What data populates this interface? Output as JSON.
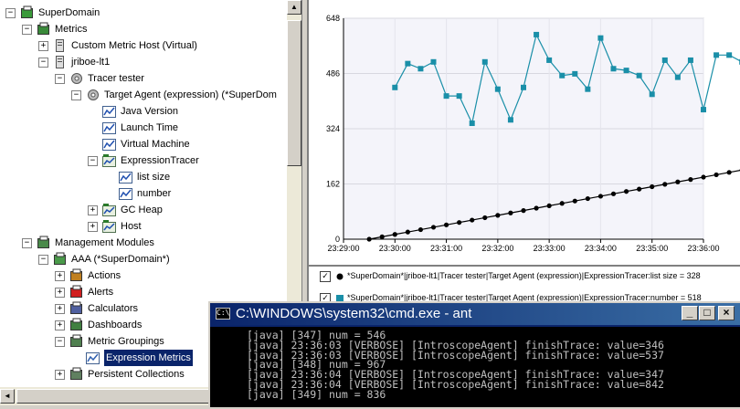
{
  "tree": {
    "nodes": [
      {
        "label": "SuperDomain",
        "depth": 0,
        "expander": "−",
        "icon": "domain-icon"
      },
      {
        "label": "Metrics",
        "depth": 1,
        "expander": "−",
        "icon": "metrics-icon"
      },
      {
        "label": "Custom Metric Host (Virtual)",
        "depth": 2,
        "expander": "+",
        "icon": "host-icon"
      },
      {
        "label": "jriboe-lt1",
        "depth": 2,
        "expander": "−",
        "icon": "host-icon"
      },
      {
        "label": "Tracer tester",
        "depth": 3,
        "expander": "−",
        "icon": "process-icon"
      },
      {
        "label": "Target Agent (expression) (*SuperDom",
        "depth": 4,
        "expander": "−",
        "icon": "agent-icon"
      },
      {
        "label": "Java Version",
        "depth": 5,
        "expander": "",
        "icon": "metric-icon"
      },
      {
        "label": "Launch Time",
        "depth": 5,
        "expander": "",
        "icon": "metric-icon"
      },
      {
        "label": "Virtual Machine",
        "depth": 5,
        "expander": "",
        "icon": "metric-icon"
      },
      {
        "label": "ExpressionTracer",
        "depth": 5,
        "expander": "−",
        "icon": "folder-metric-icon"
      },
      {
        "label": "list size",
        "depth": 6,
        "expander": "",
        "icon": "metric-icon"
      },
      {
        "label": "number",
        "depth": 6,
        "expander": "",
        "icon": "metric-icon"
      },
      {
        "label": "GC Heap",
        "depth": 5,
        "expander": "+",
        "icon": "folder-metric-icon"
      },
      {
        "label": "Host",
        "depth": 5,
        "expander": "+",
        "icon": "folder-metric-icon"
      },
      {
        "label": "Management Modules",
        "depth": 1,
        "expander": "−",
        "icon": "modules-icon"
      },
      {
        "label": "AAA (*SuperDomain*)",
        "depth": 2,
        "expander": "−",
        "icon": "module-icon"
      },
      {
        "label": "Actions",
        "depth": 3,
        "expander": "+",
        "icon": "actions-icon"
      },
      {
        "label": "Alerts",
        "depth": 3,
        "expander": "+",
        "icon": "alerts-icon"
      },
      {
        "label": "Calculators",
        "depth": 3,
        "expander": "+",
        "icon": "calculators-icon"
      },
      {
        "label": "Dashboards",
        "depth": 3,
        "expander": "+",
        "icon": "dashboards-icon"
      },
      {
        "label": "Metric Groupings",
        "depth": 3,
        "expander": "−",
        "icon": "groupings-icon"
      },
      {
        "label": "Expression Metrics",
        "depth": 4,
        "expander": "",
        "icon": "grouping-icon",
        "selected": true
      },
      {
        "label": "Persistent Collections",
        "depth": 3,
        "expander": "+",
        "icon": "collections-icon"
      }
    ]
  },
  "chart_data": {
    "type": "line",
    "y_ticks": [
      "648",
      "486",
      "324",
      "162",
      "0"
    ],
    "ylim": [
      0,
      648
    ],
    "x_ticks": [
      "23:29:00",
      "23:30:00",
      "23:31:00",
      "23:32:00",
      "23:33:00",
      "23:34:00",
      "23:35:00",
      "23:36:00"
    ],
    "series": [
      {
        "name": "*SuperDomain*|jriboe-lt1|Tracer tester|Target Agent (expression)|ExpressionTracer:list size = 328",
        "color": "#000000",
        "marker": "circle",
        "x": [
          23.5,
          23.75,
          24.0,
          24.25,
          24.5,
          24.75,
          25.0,
          25.25,
          25.5,
          25.75,
          26.0,
          26.25,
          26.5,
          26.75,
          27.0,
          27.25,
          27.5,
          27.75,
          28.0,
          28.25,
          28.5,
          28.75,
          29.0,
          29.25,
          29.5,
          29.75,
          30.0,
          30.25,
          30.5,
          30.75,
          31.0,
          31.25,
          31.5,
          31.75,
          32.0,
          32.25,
          32.5,
          32.75,
          33.0,
          33.25,
          33.5,
          33.75,
          34.0,
          34.25,
          34.5,
          34.75,
          35.0
        ],
        "values": [
          0,
          7,
          14,
          21,
          28,
          35,
          42,
          49,
          56,
          63,
          70,
          77,
          84,
          91,
          98,
          105,
          112,
          119,
          126,
          133,
          140,
          147,
          154,
          161,
          168,
          175,
          182,
          189,
          196,
          203,
          210,
          217,
          224,
          231,
          238,
          245,
          252,
          259,
          266,
          273,
          280,
          287,
          294,
          301,
          308,
          315,
          328
        ]
      },
      {
        "name": "*SuperDomain*|jriboe-lt1|Tracer tester|Target Agent (expression)|ExpressionTracer:number = 518",
        "color": "#1a8fa8",
        "marker": "square",
        "x": [
          24.0,
          24.25,
          24.5,
          24.75,
          25.0,
          25.25,
          25.5,
          25.75,
          26.0,
          26.25,
          26.5,
          26.75,
          27.0,
          27.25,
          27.5,
          27.75,
          28.0,
          28.25,
          28.5,
          28.75,
          29.0,
          29.25,
          29.5,
          29.75,
          30.0,
          30.25,
          30.5,
          30.75
        ],
        "values": [
          445,
          515,
          500,
          520,
          420,
          420,
          340,
          520,
          440,
          350,
          445,
          600,
          525,
          480,
          485,
          440,
          590,
          500,
          495,
          480,
          425,
          525,
          475,
          525,
          380,
          540,
          540,
          520
        ]
      }
    ]
  },
  "legend": {
    "rows": [
      {
        "checked": "✓",
        "text": "*SuperDomain*|jriboe-lt1|Tracer tester|Target Agent (expression)|ExpressionTracer:list size = 328"
      },
      {
        "checked": "✓",
        "text": "*SuperDomain*|jriboe-lt1|Tracer tester|Target Agent (expression)|ExpressionTracer:number = 518"
      }
    ]
  },
  "cmd": {
    "title": "C:\\WINDOWS\\system32\\cmd.exe - ant",
    "lines": [
      "[java] [347] num = 546",
      "[java] 23:36:03 [VERBOSE] [IntroscopeAgent] finishTrace: value=346",
      "[java] 23:36:03 [VERBOSE] [IntroscopeAgent] finishTrace: value=537",
      "[java] [348] num = 967",
      "[java] 23:36:04 [VERBOSE] [IntroscopeAgent] finishTrace: value=347",
      "[java] 23:36:04 [VERBOSE] [IntroscopeAgent] finishTrace: value=842",
      "[java] [349] num = 836"
    ],
    "buttons": [
      "_",
      "□",
      "×"
    ]
  }
}
